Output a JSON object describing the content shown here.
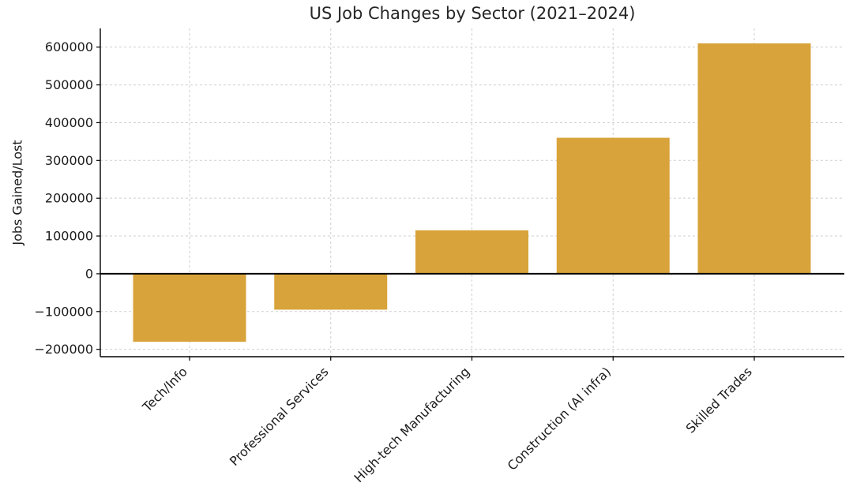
{
  "page": {
    "background": "#ffffff"
  },
  "chart_data": {
    "type": "bar",
    "title": "US Job Changes by Sector (2021–2024)",
    "xlabel": "",
    "ylabel": "Jobs Gained/Lost",
    "categories": [
      "Tech/Info",
      "Professional Services",
      "High-tech Manufacturing",
      "Construction (AI infra)",
      "Skilled Trades"
    ],
    "values": [
      -180000,
      -95000,
      115000,
      360000,
      610000
    ],
    "yticks": [
      {
        "value": -200000,
        "label": "−200000"
      },
      {
        "value": -100000,
        "label": "−100000"
      },
      {
        "value": 0,
        "label": "0"
      },
      {
        "value": 100000,
        "label": "100000"
      },
      {
        "value": 200000,
        "label": "200000"
      },
      {
        "value": 300000,
        "label": "300000"
      },
      {
        "value": 400000,
        "label": "400000"
      },
      {
        "value": 500000,
        "label": "500000"
      },
      {
        "value": 600000,
        "label": "600000"
      }
    ],
    "ylim": [
      -219500,
      649500
    ],
    "grid": true,
    "gridline_style": "dashed",
    "legend_position": "none",
    "x_tick_rotation": 45,
    "bar_color": "#d8a33a",
    "grid_color": "#cfcfcf",
    "axis_color": "#000000",
    "zero_line_color": "#000000",
    "text_color": "#1c1c1c"
  }
}
